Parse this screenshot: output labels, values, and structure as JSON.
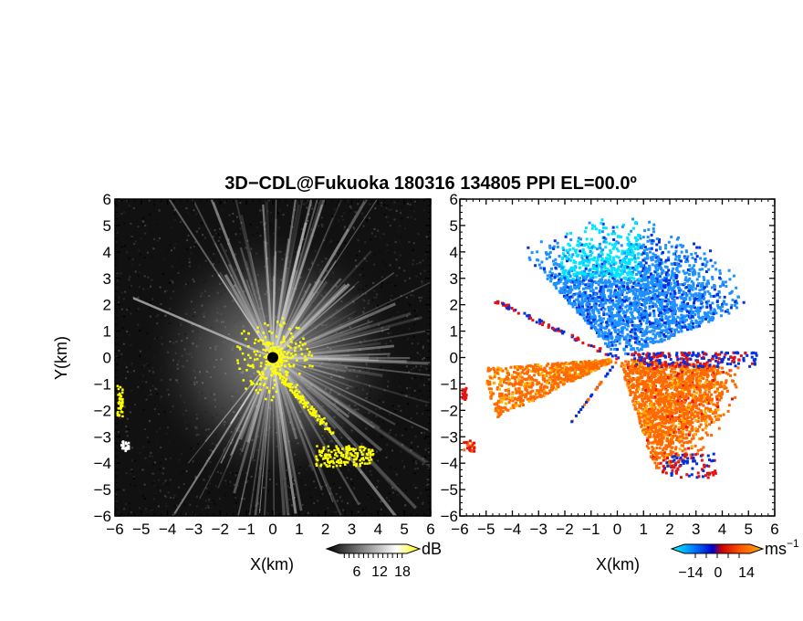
{
  "title": "3D−CDL@Fukuoka 180316 134805 PPI EL=00.0º",
  "chart_data": [
    {
      "type": "heatmap",
      "panel": "reflectivity",
      "xlabel": "X(km)",
      "ylabel": "Y(km)",
      "xlim": [
        -6,
        6
      ],
      "ylim": [
        -6,
        6
      ],
      "xticks": [
        "−6",
        "−5",
        "−4",
        "−3",
        "−2",
        "−1",
        "0",
        "1",
        "2",
        "3",
        "4",
        "5",
        "6"
      ],
      "yticks": [
        "−6",
        "−5",
        "−4",
        "−3",
        "−2",
        "−1",
        "0",
        "1",
        "2",
        "3",
        "4",
        "5",
        "6"
      ],
      "colorbar": {
        "unit": "dB",
        "ticks": [
          "6",
          "12",
          "18"
        ],
        "range": [
          0,
          21
        ],
        "colors": [
          "#000000",
          "#ffffff",
          "#ffff00"
        ]
      },
      "background": "#111111",
      "highlight_color": "#ffff00"
    },
    {
      "type": "heatmap",
      "panel": "doppler-velocity",
      "xlabel": "X(km)",
      "ylabel": "",
      "xlim": [
        -6,
        6
      ],
      "ylim": [
        -6,
        6
      ],
      "xticks": [
        "−6",
        "−5",
        "−4",
        "−3",
        "−2",
        "−1",
        "0",
        "1",
        "2",
        "3",
        "4",
        "5",
        "6"
      ],
      "yticks": [
        "−6",
        "−5",
        "−4",
        "−3",
        "−2",
        "−1",
        "0",
        "1",
        "2",
        "3",
        "4",
        "5",
        "6"
      ],
      "colorbar": {
        "unit": "ms",
        "unit_exp": "−1",
        "ticks": [
          "−14",
          "0",
          "14"
        ],
        "range": [
          -21,
          21
        ],
        "colors": [
          "#00ffff",
          "#0077ff",
          "#0000cc",
          "#cc0000",
          "#ff5500",
          "#ffaa00"
        ]
      },
      "approach_colors": [
        "#00e5ff",
        "#1e90ff",
        "#0030e0"
      ],
      "recede_colors": [
        "#ffb000",
        "#ff6a00",
        "#e81010"
      ]
    }
  ]
}
